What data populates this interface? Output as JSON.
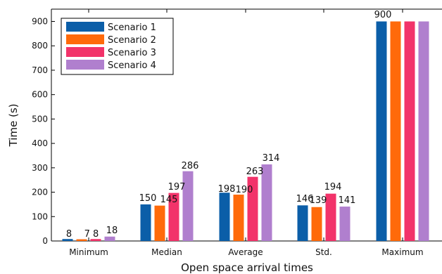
{
  "chart_data": {
    "type": "bar",
    "xlabel": "Open space arrival times",
    "ylabel": "Time (s)",
    "ylim": [
      0,
      900
    ],
    "yticks": [
      0,
      100,
      200,
      300,
      400,
      500,
      600,
      700,
      800,
      900
    ],
    "grid": false,
    "legend_position": "top-left",
    "categories": [
      "Minimum",
      "Median",
      "Average",
      "Std.",
      "Maximum"
    ],
    "series": [
      {
        "name": "Scenario 1",
        "color": "#0b5ea8",
        "values": [
          8,
          150,
          198,
          146,
          900
        ]
      },
      {
        "name": "Scenario 2",
        "color": "#ff6a0a",
        "values": [
          7,
          145,
          190,
          139,
          900
        ]
      },
      {
        "name": "Scenario 3",
        "color": "#f2336a",
        "values": [
          8,
          197,
          263,
          194,
          900
        ]
      },
      {
        "name": "Scenario 4",
        "color": "#b07fce",
        "values": [
          18,
          286,
          314,
          141,
          900
        ]
      }
    ],
    "data_labels": [
      {
        "text": "8",
        "category": 0
      },
      {
        "text": "7 8",
        "category": 0
      },
      {
        "text": "18",
        "category": 0
      },
      {
        "text": "150",
        "category": 1
      },
      {
        "text": "145",
        "category": 1
      },
      {
        "text": "197",
        "category": 1
      },
      {
        "text": "286",
        "category": 1
      },
      {
        "text": "198",
        "category": 2
      },
      {
        "text": "190",
        "category": 2
      },
      {
        "text": "263",
        "category": 2
      },
      {
        "text": "314",
        "category": 2
      },
      {
        "text": "146",
        "category": 3
      },
      {
        "text": "139",
        "category": 3
      },
      {
        "text": "194",
        "category": 3
      },
      {
        "text": "141",
        "category": 3
      },
      {
        "text": "900",
        "category": 4
      }
    ]
  }
}
